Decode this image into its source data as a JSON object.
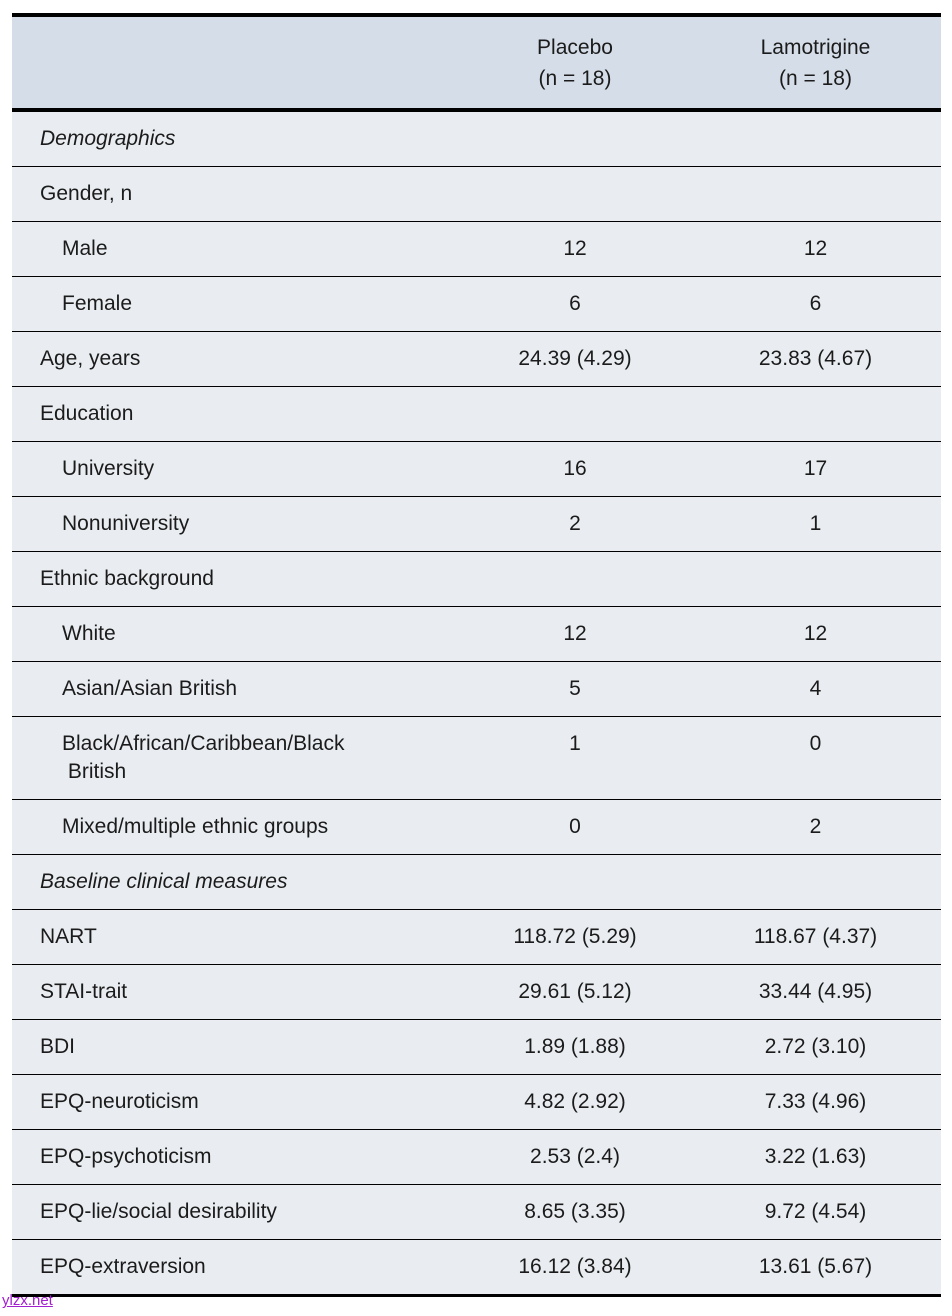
{
  "theme": {
    "header_bg": "#d4dde8",
    "body_bg": "#e9edf1",
    "border": "#000000",
    "text": "#1b1b1b",
    "watermark_color": "#a21fd0"
  },
  "table": {
    "header": {
      "placebo": {
        "title": "Placebo",
        "n": "(n = 18)"
      },
      "lamotrigine": {
        "title": "Lamotrigine",
        "n": "(n = 18)"
      }
    },
    "rows": [
      {
        "type": "section",
        "label": "Demographics",
        "placebo": "",
        "lamotrigine": ""
      },
      {
        "type": "group",
        "label": "Gender, n",
        "placebo": "",
        "lamotrigine": ""
      },
      {
        "type": "item",
        "label": "Male",
        "placebo": "12",
        "lamotrigine": "12"
      },
      {
        "type": "item",
        "label": "Female",
        "placebo": "6",
        "lamotrigine": "6"
      },
      {
        "type": "data",
        "label": "Age, years",
        "placebo": "24.39 (4.29)",
        "lamotrigine": "23.83 (4.67)"
      },
      {
        "type": "group",
        "label": "Education",
        "placebo": "",
        "lamotrigine": ""
      },
      {
        "type": "item",
        "label": "University",
        "placebo": "16",
        "lamotrigine": "17"
      },
      {
        "type": "item",
        "label": "Nonuniversity",
        "placebo": "2",
        "lamotrigine": "1"
      },
      {
        "type": "group",
        "label": "Ethnic background",
        "placebo": "",
        "lamotrigine": ""
      },
      {
        "type": "item",
        "label": "White",
        "placebo": "12",
        "lamotrigine": "12"
      },
      {
        "type": "item",
        "label": "Asian/Asian British",
        "placebo": "5",
        "lamotrigine": "4"
      },
      {
        "type": "item",
        "label": "Black/African/Caribbean/Black\n British",
        "placebo": "1",
        "lamotrigine": "0"
      },
      {
        "type": "item",
        "label": "Mixed/multiple ethnic groups",
        "placebo": "0",
        "lamotrigine": "2"
      },
      {
        "type": "section",
        "label": "Baseline clinical measures",
        "placebo": "",
        "lamotrigine": ""
      },
      {
        "type": "data",
        "label": "NART",
        "placebo": "118.72 (5.29)",
        "lamotrigine": "118.67 (4.37)"
      },
      {
        "type": "data",
        "label": "STAI-trait",
        "placebo": "29.61 (5.12)",
        "lamotrigine": "33.44 (4.95)"
      },
      {
        "type": "data",
        "label": "BDI",
        "placebo": "1.89 (1.88)",
        "lamotrigine": "2.72 (3.10)"
      },
      {
        "type": "data",
        "label": "EPQ-neuroticism",
        "placebo": "4.82 (2.92)",
        "lamotrigine": "7.33 (4.96)"
      },
      {
        "type": "data",
        "label": "EPQ-psychoticism",
        "placebo": "2.53 (2.4)",
        "lamotrigine": "3.22 (1.63)"
      },
      {
        "type": "data",
        "label": "EPQ-lie/social desirability",
        "placebo": "8.65 (3.35)",
        "lamotrigine": "9.72 (4.54)"
      },
      {
        "type": "data",
        "label": "EPQ-extraversion",
        "placebo": "16.12 (3.84)",
        "lamotrigine": "13.61 (5.67)"
      }
    ]
  },
  "watermark": {
    "text": "ylzx.net"
  }
}
